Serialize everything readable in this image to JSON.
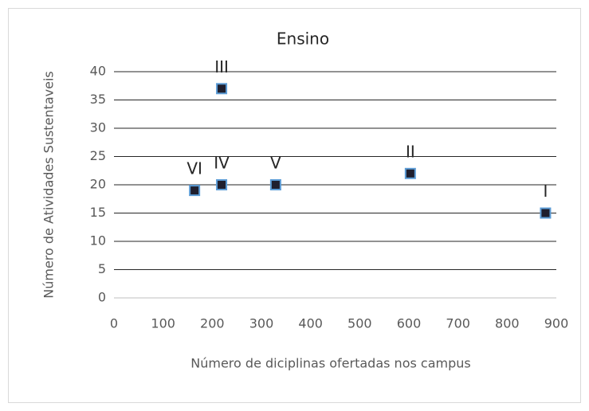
{
  "chart_data": {
    "type": "scatter",
    "title": "Ensino",
    "x_label": "Número de diciplinas ofertadas nos campus",
    "y_label": "Número de Atividades Sustentaveis",
    "x": [
      878,
      603,
      219,
      219,
      329,
      164
    ],
    "values": [
      15,
      22,
      37,
      20,
      20,
      19
    ],
    "point_labels": [
      "I",
      "II",
      "III",
      "IV",
      "V",
      "VI"
    ],
    "color": "#1f1f2e",
    "edge_color": "#5b9bd5",
    "xlim": [
      0,
      900
    ],
    "xticks": [
      0,
      100,
      200,
      300,
      400,
      500,
      600,
      700,
      800,
      900
    ],
    "ylim": [
      0,
      40
    ],
    "yticks": [
      0,
      5,
      10,
      15,
      20,
      25,
      30,
      35,
      40
    ],
    "grid": true
  }
}
